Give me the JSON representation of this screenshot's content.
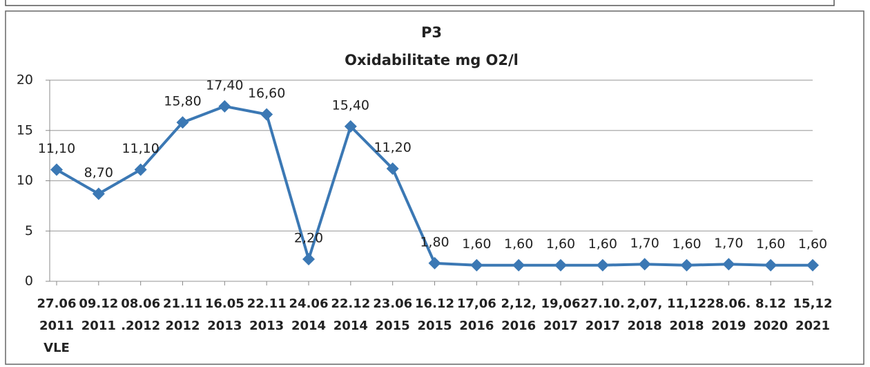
{
  "chart_data": {
    "type": "line",
    "title": "P3",
    "subtitle": "Oxidabilitate mg O2/l",
    "categories": [
      [
        "27.06",
        "2011",
        "VLE"
      ],
      [
        "09.12",
        "2011"
      ],
      [
        "08.06",
        ".2012"
      ],
      [
        "21.11",
        "2012"
      ],
      [
        "16.05",
        "2013"
      ],
      [
        "22.11",
        "2013"
      ],
      [
        "24.06",
        "2014"
      ],
      [
        "22.12",
        "2014"
      ],
      [
        "23.06",
        "2015"
      ],
      [
        "16.12",
        "2015"
      ],
      [
        "17,06",
        "2016"
      ],
      [
        "2,12,",
        "2016"
      ],
      [
        "19,06",
        "2017"
      ],
      [
        "27.10.",
        "2017"
      ],
      [
        "2,07,",
        "2018"
      ],
      [
        "11,12",
        "2018"
      ],
      [
        "28.06.",
        "2019"
      ],
      [
        "8.12",
        "2020"
      ],
      [
        "15,12",
        "2021"
      ]
    ],
    "values": [
      11.1,
      8.7,
      11.1,
      15.8,
      17.4,
      16.6,
      2.2,
      15.4,
      11.2,
      1.8,
      1.6,
      1.6,
      1.6,
      1.6,
      1.7,
      1.6,
      1.7,
      1.6,
      1.6
    ],
    "value_labels": [
      "11,10",
      "8,70",
      "11,10",
      "15,80",
      "17,40",
      "16,60",
      "2,20",
      "15,40",
      "11,20",
      "1,80",
      "1,60",
      "1,60",
      "1,60",
      "1,60",
      "1,70",
      "1,60",
      "1,70",
      "1,60",
      "1,60"
    ],
    "color": "#3b78b4",
    "ylim": [
      0,
      20
    ],
    "yticks": [
      0,
      5,
      10,
      15,
      20
    ],
    "grid": true
  }
}
